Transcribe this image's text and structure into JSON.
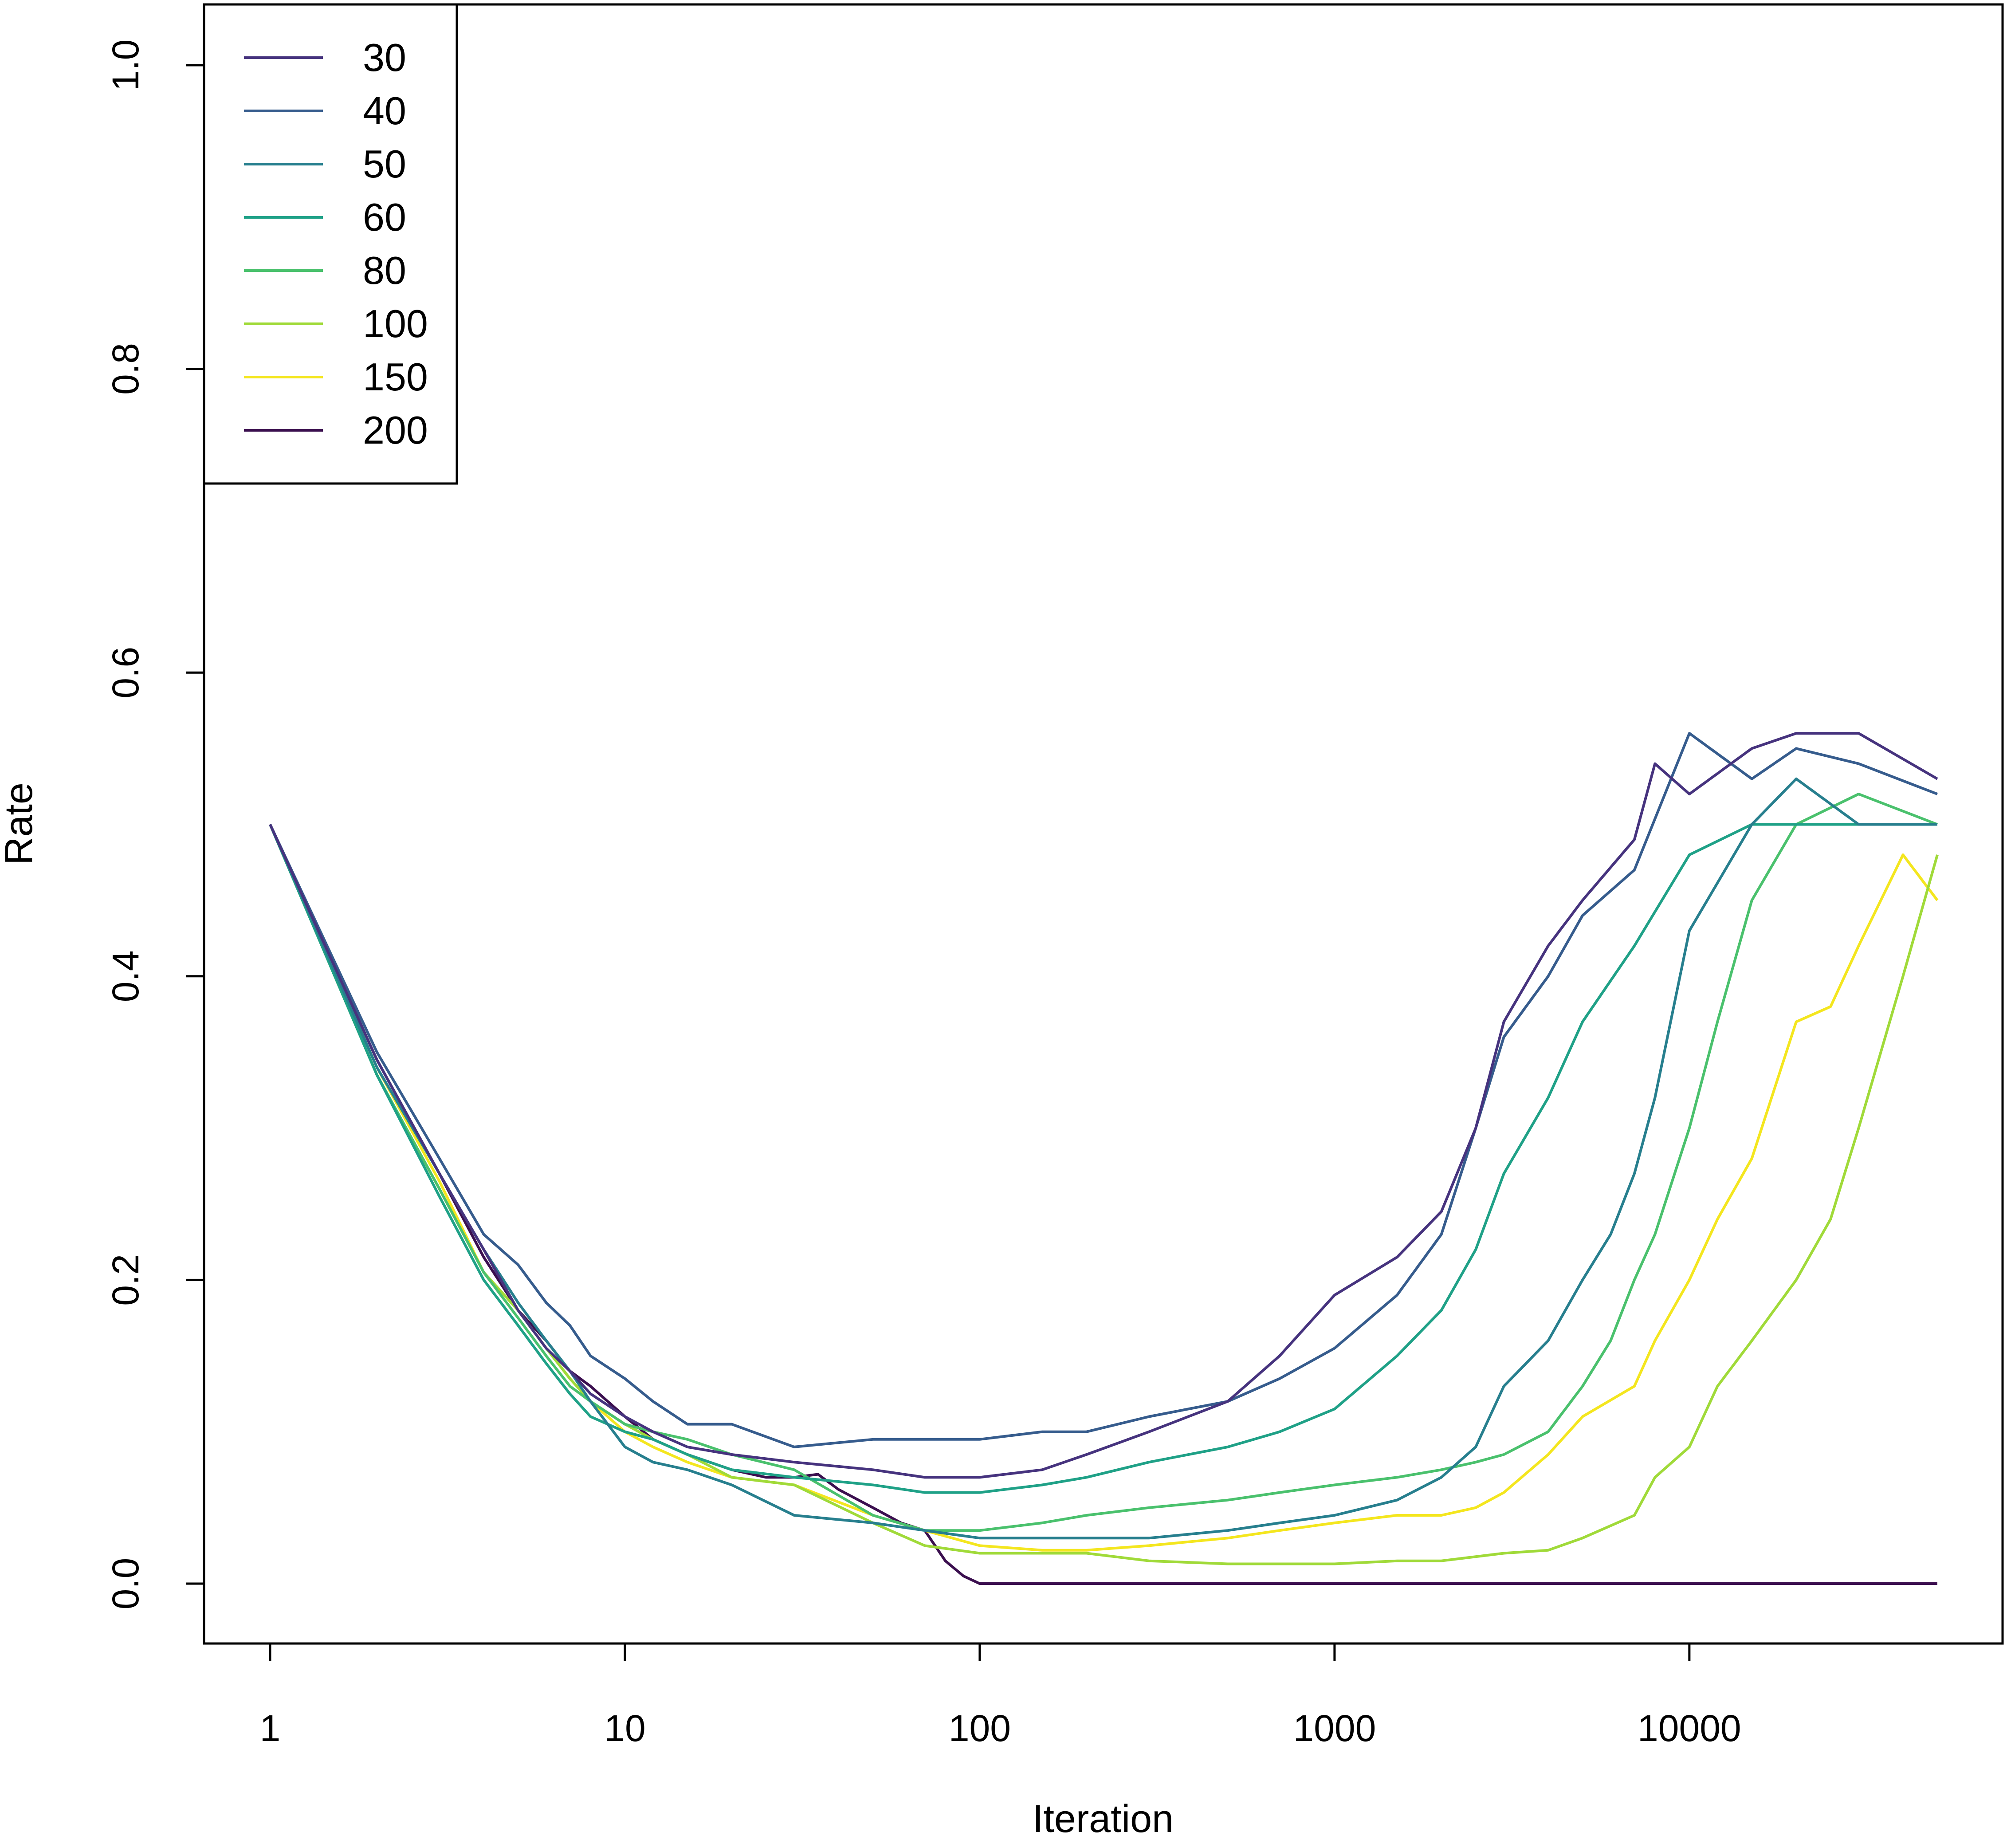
{
  "chart_data": {
    "type": "line",
    "title": "",
    "xlabel": "Iteration",
    "ylabel": "Rate",
    "x_scale": "log",
    "xlim": [
      1,
      50000
    ],
    "ylim": [
      0,
      1
    ],
    "x_ticks": [
      {
        "value": 1,
        "label": "1"
      },
      {
        "value": 10,
        "label": "10"
      },
      {
        "value": 100,
        "label": "100"
      },
      {
        "value": 1000,
        "label": "1000"
      },
      {
        "value": 10000,
        "label": "10000"
      }
    ],
    "y_ticks": [
      {
        "value": 0,
        "label": "0.0"
      },
      {
        "value": 0.2,
        "label": "0.2"
      },
      {
        "value": 0.4,
        "label": "0.4"
      },
      {
        "value": 0.6,
        "label": "0.6"
      },
      {
        "value": 0.8,
        "label": "0.8"
      },
      {
        "value": 1.0,
        "label": "1.0"
      }
    ],
    "grid": false,
    "legend_position": "top-left",
    "series": [
      {
        "name": "30",
        "color": "#46337e",
        "x": [
          1,
          2,
          3,
          4,
          5,
          6,
          7,
          8,
          10,
          12,
          15,
          20,
          30,
          50,
          70,
          100,
          150,
          200,
          300,
          500,
          700,
          1000,
          1500,
          2000,
          2500,
          3000,
          4000,
          5000,
          7000,
          8000,
          10000,
          15000,
          20000,
          30000,
          50000
        ],
        "y": [
          0.5,
          0.345,
          0.27,
          0.22,
          0.18,
          0.155,
          0.14,
          0.125,
          0.11,
          0.1,
          0.09,
          0.085,
          0.08,
          0.075,
          0.07,
          0.07,
          0.075,
          0.085,
          0.1,
          0.12,
          0.15,
          0.19,
          0.215,
          0.245,
          0.3,
          0.37,
          0.42,
          0.45,
          0.49,
          0.54,
          0.52,
          0.55,
          0.56,
          0.56,
          0.53
        ]
      },
      {
        "name": "40",
        "color": "#365c8d",
        "x": [
          1,
          2,
          3,
          4,
          5,
          6,
          7,
          8,
          10,
          12,
          15,
          20,
          30,
          50,
          70,
          100,
          150,
          200,
          300,
          500,
          700,
          1000,
          1500,
          2000,
          2500,
          3000,
          4000,
          5000,
          7000,
          10000,
          15000,
          20000,
          30000,
          50000
        ],
        "y": [
          0.5,
          0.35,
          0.28,
          0.23,
          0.21,
          0.185,
          0.17,
          0.15,
          0.135,
          0.12,
          0.105,
          0.105,
          0.09,
          0.095,
          0.095,
          0.095,
          0.1,
          0.1,
          0.11,
          0.12,
          0.135,
          0.155,
          0.19,
          0.23,
          0.3,
          0.36,
          0.4,
          0.44,
          0.47,
          0.56,
          0.53,
          0.55,
          0.54,
          0.52
        ]
      },
      {
        "name": "50",
        "color": "#277f8e",
        "x": [
          1,
          2,
          3,
          4,
          5,
          6,
          7,
          8,
          10,
          12,
          15,
          20,
          30,
          50,
          70,
          100,
          150,
          200,
          300,
          500,
          700,
          1000,
          1500,
          2000,
          2500,
          3000,
          4000,
          5000,
          6000,
          7000,
          8000,
          10000,
          15000,
          20000,
          30000,
          50000
        ],
        "y": [
          0.5,
          0.34,
          0.27,
          0.22,
          0.185,
          0.16,
          0.14,
          0.12,
          0.09,
          0.08,
          0.075,
          0.065,
          0.045,
          0.04,
          0.035,
          0.03,
          0.03,
          0.03,
          0.03,
          0.035,
          0.04,
          0.045,
          0.055,
          0.07,
          0.09,
          0.13,
          0.16,
          0.2,
          0.23,
          0.27,
          0.32,
          0.43,
          0.5,
          0.53,
          0.5,
          0.5
        ]
      },
      {
        "name": "60",
        "color": "#1fa187",
        "x": [
          1,
          2,
          3,
          4,
          5,
          6,
          7,
          8,
          10,
          12,
          15,
          20,
          30,
          50,
          70,
          100,
          150,
          200,
          300,
          500,
          700,
          1000,
          1500,
          2000,
          2500,
          3000,
          4000,
          5000,
          7000,
          10000,
          15000,
          20000,
          30000,
          50000
        ],
        "y": [
          0.5,
          0.335,
          0.255,
          0.2,
          0.17,
          0.145,
          0.125,
          0.11,
          0.1,
          0.095,
          0.085,
          0.075,
          0.07,
          0.065,
          0.06,
          0.06,
          0.065,
          0.07,
          0.08,
          0.09,
          0.1,
          0.115,
          0.15,
          0.18,
          0.22,
          0.27,
          0.32,
          0.37,
          0.42,
          0.48,
          0.5,
          0.5,
          0.5,
          0.5
        ]
      },
      {
        "name": "80",
        "color": "#4ac16d",
        "x": [
          1,
          2,
          3,
          4,
          5,
          6,
          7,
          8,
          10,
          12,
          15,
          20,
          30,
          50,
          70,
          100,
          150,
          200,
          300,
          500,
          700,
          1000,
          1500,
          2000,
          2500,
          3000,
          4000,
          5000,
          6000,
          7000,
          8000,
          10000,
          12000,
          15000,
          20000,
          30000,
          50000
        ],
        "y": [
          0.5,
          0.335,
          0.26,
          0.205,
          0.175,
          0.15,
          0.13,
          0.12,
          0.105,
          0.1,
          0.095,
          0.085,
          0.075,
          0.045,
          0.035,
          0.035,
          0.04,
          0.045,
          0.05,
          0.055,
          0.06,
          0.065,
          0.07,
          0.075,
          0.08,
          0.085,
          0.1,
          0.13,
          0.16,
          0.2,
          0.23,
          0.3,
          0.37,
          0.45,
          0.5,
          0.52,
          0.5
        ]
      },
      {
        "name": "100",
        "color": "#a0da39",
        "x": [
          1,
          2,
          3,
          4,
          5,
          6,
          7,
          8,
          10,
          12,
          15,
          20,
          30,
          50,
          70,
          100,
          150,
          200,
          300,
          500,
          700,
          1000,
          1500,
          2000,
          3000,
          4000,
          5000,
          7000,
          8000,
          10000,
          12000,
          15000,
          20000,
          25000,
          30000,
          40000,
          50000
        ],
        "y": [
          0.5,
          0.335,
          0.26,
          0.205,
          0.18,
          0.155,
          0.135,
          0.12,
          0.105,
          0.095,
          0.085,
          0.07,
          0.065,
          0.04,
          0.025,
          0.02,
          0.02,
          0.02,
          0.015,
          0.013,
          0.013,
          0.013,
          0.015,
          0.015,
          0.02,
          0.022,
          0.03,
          0.045,
          0.07,
          0.09,
          0.13,
          0.16,
          0.2,
          0.24,
          0.3,
          0.4,
          0.48
        ]
      },
      {
        "name": "150",
        "color": "#f4e61e",
        "x": [
          1,
          2,
          3,
          4,
          5,
          6,
          7,
          8,
          10,
          12,
          15,
          20,
          30,
          50,
          70,
          100,
          150,
          200,
          300,
          500,
          700,
          1000,
          1500,
          2000,
          2500,
          3000,
          4000,
          5000,
          7000,
          8000,
          10000,
          12000,
          15000,
          20000,
          25000,
          30000,
          40000,
          50000
        ],
        "y": [
          0.5,
          0.34,
          0.265,
          0.205,
          0.18,
          0.155,
          0.135,
          0.12,
          0.1,
          0.09,
          0.08,
          0.07,
          0.065,
          0.045,
          0.035,
          0.025,
          0.022,
          0.022,
          0.025,
          0.03,
          0.035,
          0.04,
          0.045,
          0.045,
          0.05,
          0.06,
          0.085,
          0.11,
          0.13,
          0.16,
          0.2,
          0.24,
          0.28,
          0.37,
          0.38,
          0.42,
          0.48,
          0.45
        ]
      },
      {
        "name": "200",
        "color": "#3b0f4f",
        "x": [
          1,
          2,
          3,
          4,
          5,
          6,
          7,
          8,
          10,
          12,
          15,
          20,
          25,
          30,
          35,
          40,
          50,
          60,
          70,
          80,
          90,
          100,
          200,
          500,
          1000,
          2000,
          5000,
          10000,
          20000,
          50000
        ],
        "y": [
          0.5,
          0.345,
          0.27,
          0.215,
          0.18,
          0.16,
          0.14,
          0.13,
          0.11,
          0.095,
          0.085,
          0.075,
          0.07,
          0.07,
          0.072,
          0.062,
          0.05,
          0.04,
          0.035,
          0.015,
          0.005,
          0,
          0,
          0,
          0,
          0,
          0,
          0,
          0,
          0
        ]
      }
    ]
  }
}
